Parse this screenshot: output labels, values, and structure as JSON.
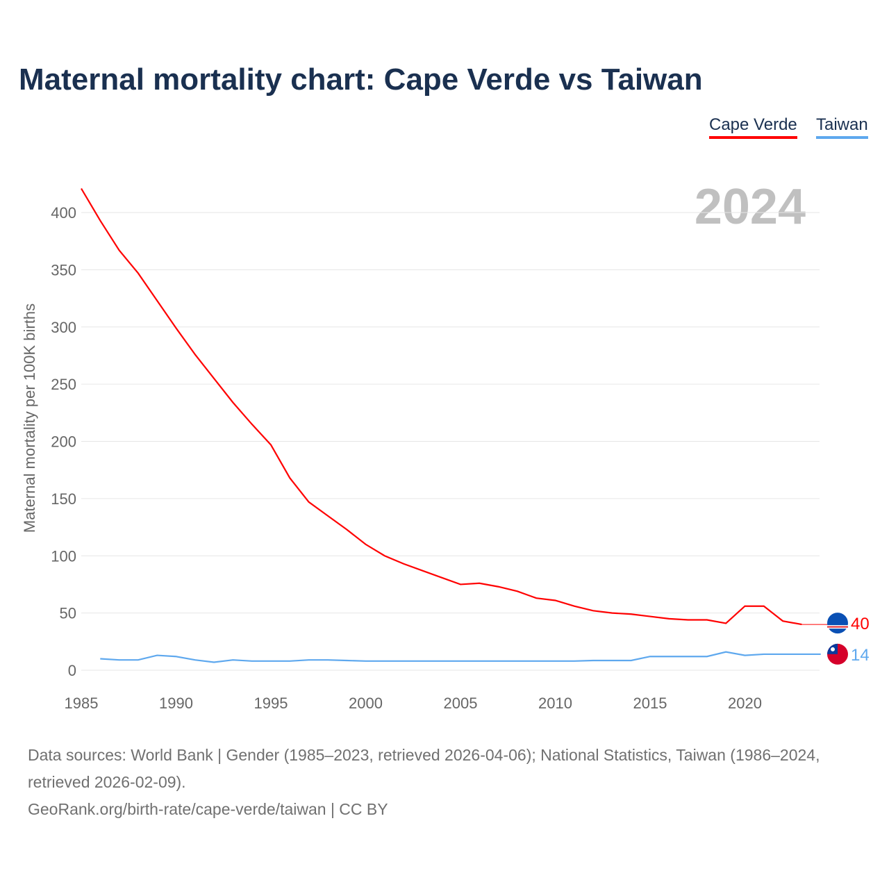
{
  "chart_data": {
    "type": "line",
    "title": "Maternal mortality chart: Cape Verde vs Taiwan",
    "ylabel": "Maternal mortality per 100K births",
    "xlabel": "",
    "ylim": [
      0,
      420
    ],
    "xlim": [
      1985,
      2024
    ],
    "yticks": [
      0,
      50,
      100,
      150,
      200,
      250,
      300,
      350,
      400
    ],
    "xticks": [
      1985,
      1990,
      1995,
      2000,
      2005,
      2010,
      2015,
      2020
    ],
    "grid": true,
    "year_label": "2024",
    "legend_position": "top-right",
    "series": [
      {
        "name": "Cape Verde",
        "color": "#ff0000",
        "end_label": "40",
        "x": [
          1985,
          1986,
          1987,
          1988,
          1989,
          1990,
          1991,
          1992,
          1993,
          1994,
          1995,
          1996,
          1997,
          1998,
          1999,
          2000,
          2001,
          2002,
          2003,
          2004,
          2005,
          2006,
          2007,
          2008,
          2009,
          2010,
          2011,
          2012,
          2013,
          2014,
          2015,
          2016,
          2017,
          2018,
          2019,
          2020,
          2021,
          2022,
          2023
        ],
        "values": [
          421,
          393,
          367,
          347,
          323,
          299,
          276,
          255,
          234,
          215,
          197,
          168,
          147,
          135,
          123,
          110,
          100,
          93,
          87,
          81,
          75,
          76,
          73,
          69,
          63,
          61,
          56,
          52,
          50,
          49,
          47,
          45,
          44,
          44,
          41,
          56,
          56,
          43,
          40
        ]
      },
      {
        "name": "Taiwan",
        "color": "#5ea8ee",
        "end_label": "14",
        "x": [
          1986,
          1987,
          1988,
          1989,
          1990,
          1991,
          1992,
          1993,
          1994,
          1995,
          1996,
          1997,
          1998,
          1999,
          2000,
          2001,
          2002,
          2003,
          2004,
          2005,
          2006,
          2007,
          2008,
          2009,
          2010,
          2011,
          2012,
          2013,
          2014,
          2015,
          2016,
          2017,
          2018,
          2019,
          2020,
          2021,
          2022,
          2023,
          2024
        ],
        "values": [
          10,
          9,
          9,
          13,
          12,
          9,
          7,
          9,
          8,
          8,
          8,
          9,
          9,
          8.5,
          8,
          8,
          8,
          8,
          8,
          8,
          8,
          8,
          8,
          8,
          8,
          8,
          8.5,
          8.5,
          8.5,
          12,
          12,
          12,
          12,
          16,
          13,
          14,
          14,
          14,
          14
        ]
      }
    ]
  },
  "footer": {
    "line1": "Data sources: World Bank | Gender (1985–2023, retrieved 2026-04-06); National Statistics, Taiwan (1986–2024, retrieved 2026-02-09).",
    "line2": "GeoRank.org/birth-rate/cape-verde/taiwan | CC BY"
  }
}
